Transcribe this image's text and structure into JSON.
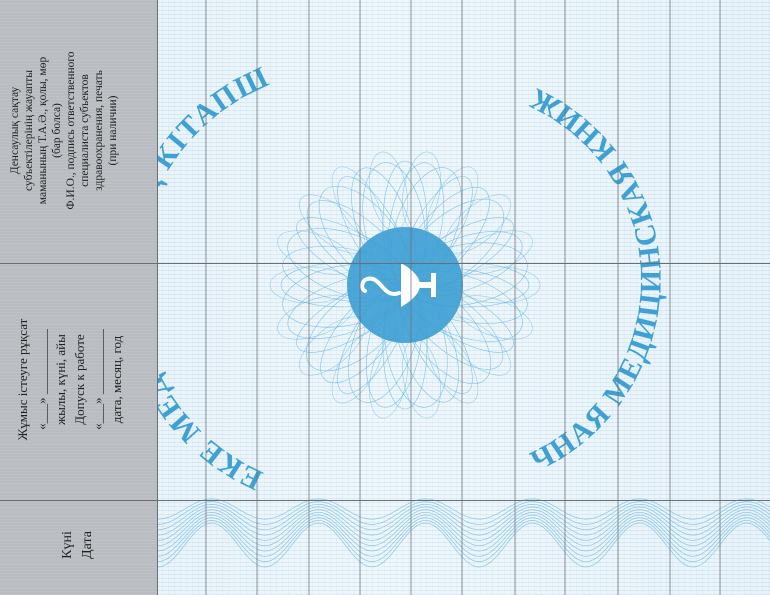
{
  "header": {
    "col_signature": {
      "lines_kz": [
        "Денсаулық сақтау",
        "субъектілерінің жауапты",
        "маманының Т.А.Ә., қолы, мөр",
        "(бар болса)"
      ],
      "lines_ru": [
        "Ф.И.О., подпись ответственного",
        "специалиста субъектов",
        "здравоохранения, печать",
        "(при наличии)"
      ]
    },
    "col_admission": {
      "title_kz": "Жұмыс істеуге рұқсат",
      "blank_kz": "«___» __________",
      "caption_kz": "жылы, күні, айы",
      "title_ru": "Допуск к работе",
      "blank_ru": "«___» __________",
      "caption_ru": "дата, месяц, год"
    },
    "col_date": {
      "label_kz": "Күні",
      "label_ru": "Дата"
    }
  },
  "stamp": {
    "text_kz": "ЖЕКЕ МЕДИЦИНАЛЫҚ КІТАПША",
    "text_ru": "ЛИЧНАЯ МЕДИЦИНСКАЯ КНИЖКА",
    "color": "#3fa0d4",
    "emblem": "bowl-of-hygieia-icon"
  },
  "colors": {
    "header_bg": "#b9bcc0",
    "grid_line": "#6b6f73",
    "guilloche": "#5fb2de"
  }
}
